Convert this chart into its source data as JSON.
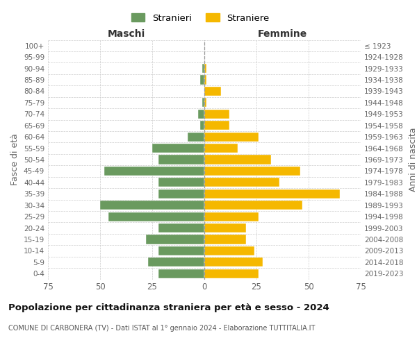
{
  "age_groups": [
    "0-4",
    "5-9",
    "10-14",
    "15-19",
    "20-24",
    "25-29",
    "30-34",
    "35-39",
    "40-44",
    "45-49",
    "50-54",
    "55-59",
    "60-64",
    "65-69",
    "70-74",
    "75-79",
    "80-84",
    "85-89",
    "90-94",
    "95-99",
    "100+"
  ],
  "birth_years": [
    "2019-2023",
    "2014-2018",
    "2009-2013",
    "2004-2008",
    "1999-2003",
    "1994-1998",
    "1989-1993",
    "1984-1988",
    "1979-1983",
    "1974-1978",
    "1969-1973",
    "1964-1968",
    "1959-1963",
    "1954-1958",
    "1949-1953",
    "1944-1948",
    "1939-1943",
    "1934-1938",
    "1929-1933",
    "1924-1928",
    "≤ 1923"
  ],
  "males": [
    22,
    27,
    22,
    28,
    22,
    46,
    50,
    22,
    22,
    48,
    22,
    25,
    8,
    2,
    3,
    1,
    0,
    2,
    1,
    0,
    0
  ],
  "females": [
    26,
    28,
    24,
    20,
    20,
    26,
    47,
    65,
    36,
    46,
    32,
    16,
    26,
    12,
    12,
    1,
    8,
    1,
    1,
    0,
    0
  ],
  "male_color": "#6a9a5f",
  "female_color": "#f5b800",
  "background_color": "#ffffff",
  "grid_color": "#cccccc",
  "title": "Popolazione per cittadinanza straniera per età e sesso - 2024",
  "subtitle": "COMUNE DI CARBONERA (TV) - Dati ISTAT al 1° gennaio 2024 - Elaborazione TUTTITALIA.IT",
  "xlabel_left": "Maschi",
  "xlabel_right": "Femmine",
  "ylabel_left": "Fasce di età",
  "ylabel_right": "Anni di nascita",
  "xlim": 75,
  "legend_stranieri": "Stranieri",
  "legend_straniere": "Straniere",
  "figsize": [
    6.0,
    5.0
  ],
  "dpi": 100
}
